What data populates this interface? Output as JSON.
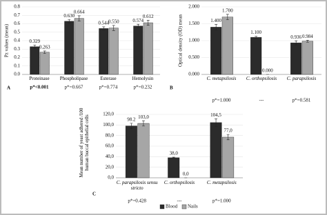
{
  "chart_data": [
    {
      "type": "bar",
      "panel_label": "A",
      "ylabel": "Pz values (mean)",
      "categories": [
        "Proteinase",
        "Phospholipase",
        "Esterase",
        "Hemolysin"
      ],
      "series": [
        {
          "name": "Blood",
          "color": "#2b2b2b",
          "values": [
            0.329,
            0.63,
            0.544,
            0.574
          ],
          "value_labels": [
            "0.329",
            "0.630",
            "0.544",
            "0.574"
          ],
          "errors": [
            0.02,
            0.02,
            0.02,
            0.02
          ]
        },
        {
          "name": "Nails",
          "color": "#a6a6a6",
          "values": [
            0.263,
            0.664,
            0.55,
            0.612
          ],
          "value_labels": [
            "0.263",
            "0.664",
            "0.550",
            "0.612"
          ],
          "errors": [
            0.015,
            0.03,
            0.03,
            0.03
          ]
        }
      ],
      "p_values": [
        "p*<0.001",
        "p*=0.667",
        "p*=0.774",
        "p*=0.232"
      ],
      "ylim": [
        0,
        0.8
      ],
      "yticks": [
        {
          "value": 0,
          "label": "0.0"
        },
        {
          "value": 0.1,
          "label": "0.1"
        },
        {
          "value": 0.2,
          "label": "0.2"
        },
        {
          "value": 0.3,
          "label": "0.3"
        },
        {
          "value": 0.4,
          "label": "0.4"
        },
        {
          "value": 0.5,
          "label": "0.5"
        },
        {
          "value": 0.6,
          "label": "0.6"
        },
        {
          "value": 0.7,
          "label": "0.7"
        },
        {
          "value": 0.8,
          "label": "0.8"
        }
      ]
    },
    {
      "type": "bar",
      "panel_label": "B",
      "ylabel": "Optical density (OD) mean",
      "categories": [
        "C. metapsilosis",
        "C. orthopsilosis",
        "C. parapsilosis"
      ],
      "series": [
        {
          "name": "Blood",
          "color": "#2b2b2b",
          "values": [
            1.4,
            1.1,
            0.936
          ],
          "value_labels": [
            "1.400",
            "1.100",
            "0.936"
          ],
          "errors": [
            0.08,
            0.03,
            0.06
          ]
        },
        {
          "name": "Nails",
          "color": "#a6a6a6",
          "values": [
            1.7,
            0,
            0.984
          ],
          "value_labels": [
            "1.700",
            "0.000",
            "0.984"
          ],
          "errors": [
            0.08,
            0,
            0.03
          ]
        }
      ],
      "p_values": [
        "p*=1.000",
        "---",
        "p*=0.581"
      ],
      "ylim": [
        0,
        2
      ],
      "yticks": [
        {
          "value": 0,
          "label": "0.000"
        },
        {
          "value": 0.5,
          "label": "0.500"
        },
        {
          "value": 1,
          "label": "1.000"
        },
        {
          "value": 1.5,
          "label": "1.500"
        },
        {
          "value": 2,
          "label": "2.000"
        }
      ]
    },
    {
      "type": "bar",
      "panel_label": "C",
      "ylabel": "Mean number of yeast adhered /100 human buccal epithelial cells",
      "legend": "bottom",
      "categories": [
        "C. parapsilosis sensu stricto",
        "C. orthopsilosis",
        "C. metapsilosis"
      ],
      "series": [
        {
          "name": "Blood",
          "color": "#2b2b2b",
          "values": [
            98.2,
            38,
            104.5
          ],
          "value_labels": [
            "98.2",
            "38,0",
            "104,5"
          ],
          "errors": [
            5,
            1,
            7
          ]
        },
        {
          "name": "Nails",
          "color": "#a6a6a6",
          "values": [
            103,
            0,
            77
          ],
          "value_labels": [
            "103,0",
            "0,0",
            "77,0"
          ],
          "errors": [
            5,
            0,
            5
          ]
        }
      ],
      "p_values": [
        "p*=0.428",
        "---",
        "p*=1.000"
      ],
      "ylim": [
        0,
        120
      ],
      "yticks": [
        {
          "value": 0,
          "label": "0,0"
        },
        {
          "value": 20,
          "label": "20,0"
        },
        {
          "value": 40,
          "label": "40,0"
        },
        {
          "value": 60,
          "label": "60,0"
        },
        {
          "value": 80,
          "label": "80,0"
        },
        {
          "value": 100,
          "label": "100,0"
        },
        {
          "value": 120,
          "label": "120,0"
        }
      ]
    }
  ]
}
